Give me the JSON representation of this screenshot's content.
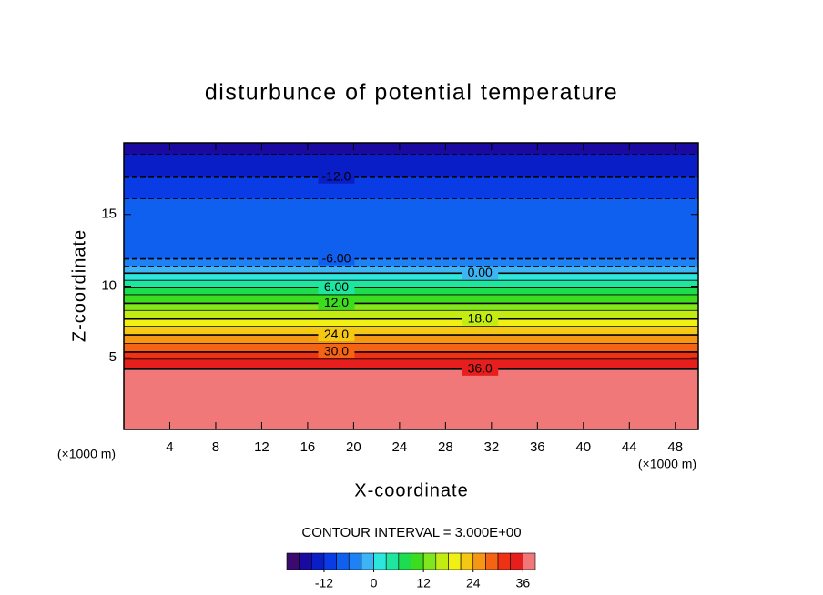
{
  "chart_data": {
    "type": "contour",
    "title": "disturbunce of potential temperature",
    "xlabel": "X-coordinate",
    "ylabel": "Z-coordinate",
    "x_unit_label": "(×1000 m)",
    "annotation": "CONTOUR INTERVAL = 3.000E+00",
    "xlim": [
      0,
      50
    ],
    "xticks": [
      4,
      8,
      12,
      16,
      20,
      24,
      28,
      32,
      36,
      40,
      44,
      48
    ],
    "ylim": [
      0,
      20
    ],
    "yticks": [
      5,
      10,
      15
    ],
    "line_color": "#000000",
    "contours": [
      {
        "level": -15,
        "z": 19.2
      },
      {
        "level": -12,
        "z": 17.6,
        "label": "-12.0"
      },
      {
        "level": -9,
        "z": 16.1
      },
      {
        "level": -6,
        "z": 11.9,
        "label": "-6.00"
      },
      {
        "level": -3,
        "z": 11.4
      },
      {
        "level": 0,
        "z": 10.9,
        "label": "0.00"
      },
      {
        "level": 3,
        "z": 10.4
      },
      {
        "level": 6,
        "z": 9.9,
        "label": "6.00"
      },
      {
        "level": 9,
        "z": 9.4
      },
      {
        "level": 12,
        "z": 8.8,
        "label": "12.0"
      },
      {
        "level": 15,
        "z": 8.3
      },
      {
        "level": 18,
        "z": 7.7,
        "label": "18.0"
      },
      {
        "level": 21,
        "z": 7.2
      },
      {
        "level": 24,
        "z": 6.6,
        "label": "24.0"
      },
      {
        "level": 27,
        "z": 6.0
      },
      {
        "level": 30,
        "z": 5.4,
        "label": "30.0"
      },
      {
        "level": 33,
        "z": 4.9
      },
      {
        "level": 36,
        "z": 4.2,
        "label": "36.0"
      }
    ],
    "colorbar": {
      "clim": [
        -21,
        39
      ],
      "ticks": [
        -12,
        0,
        12,
        24,
        36
      ],
      "colors": [
        "#3a0a6e",
        "#1a0aa0",
        "#0a1ec8",
        "#0a3ce6",
        "#1060f0",
        "#1e82f5",
        "#3cb4f5",
        "#2de6dc",
        "#1ee6a0",
        "#1edc50",
        "#3cdc1e",
        "#82e61e",
        "#c3eb14",
        "#f0f014",
        "#f5c814",
        "#f59614",
        "#f56414",
        "#f03214",
        "#e61e1e",
        "#f07878"
      ]
    }
  }
}
